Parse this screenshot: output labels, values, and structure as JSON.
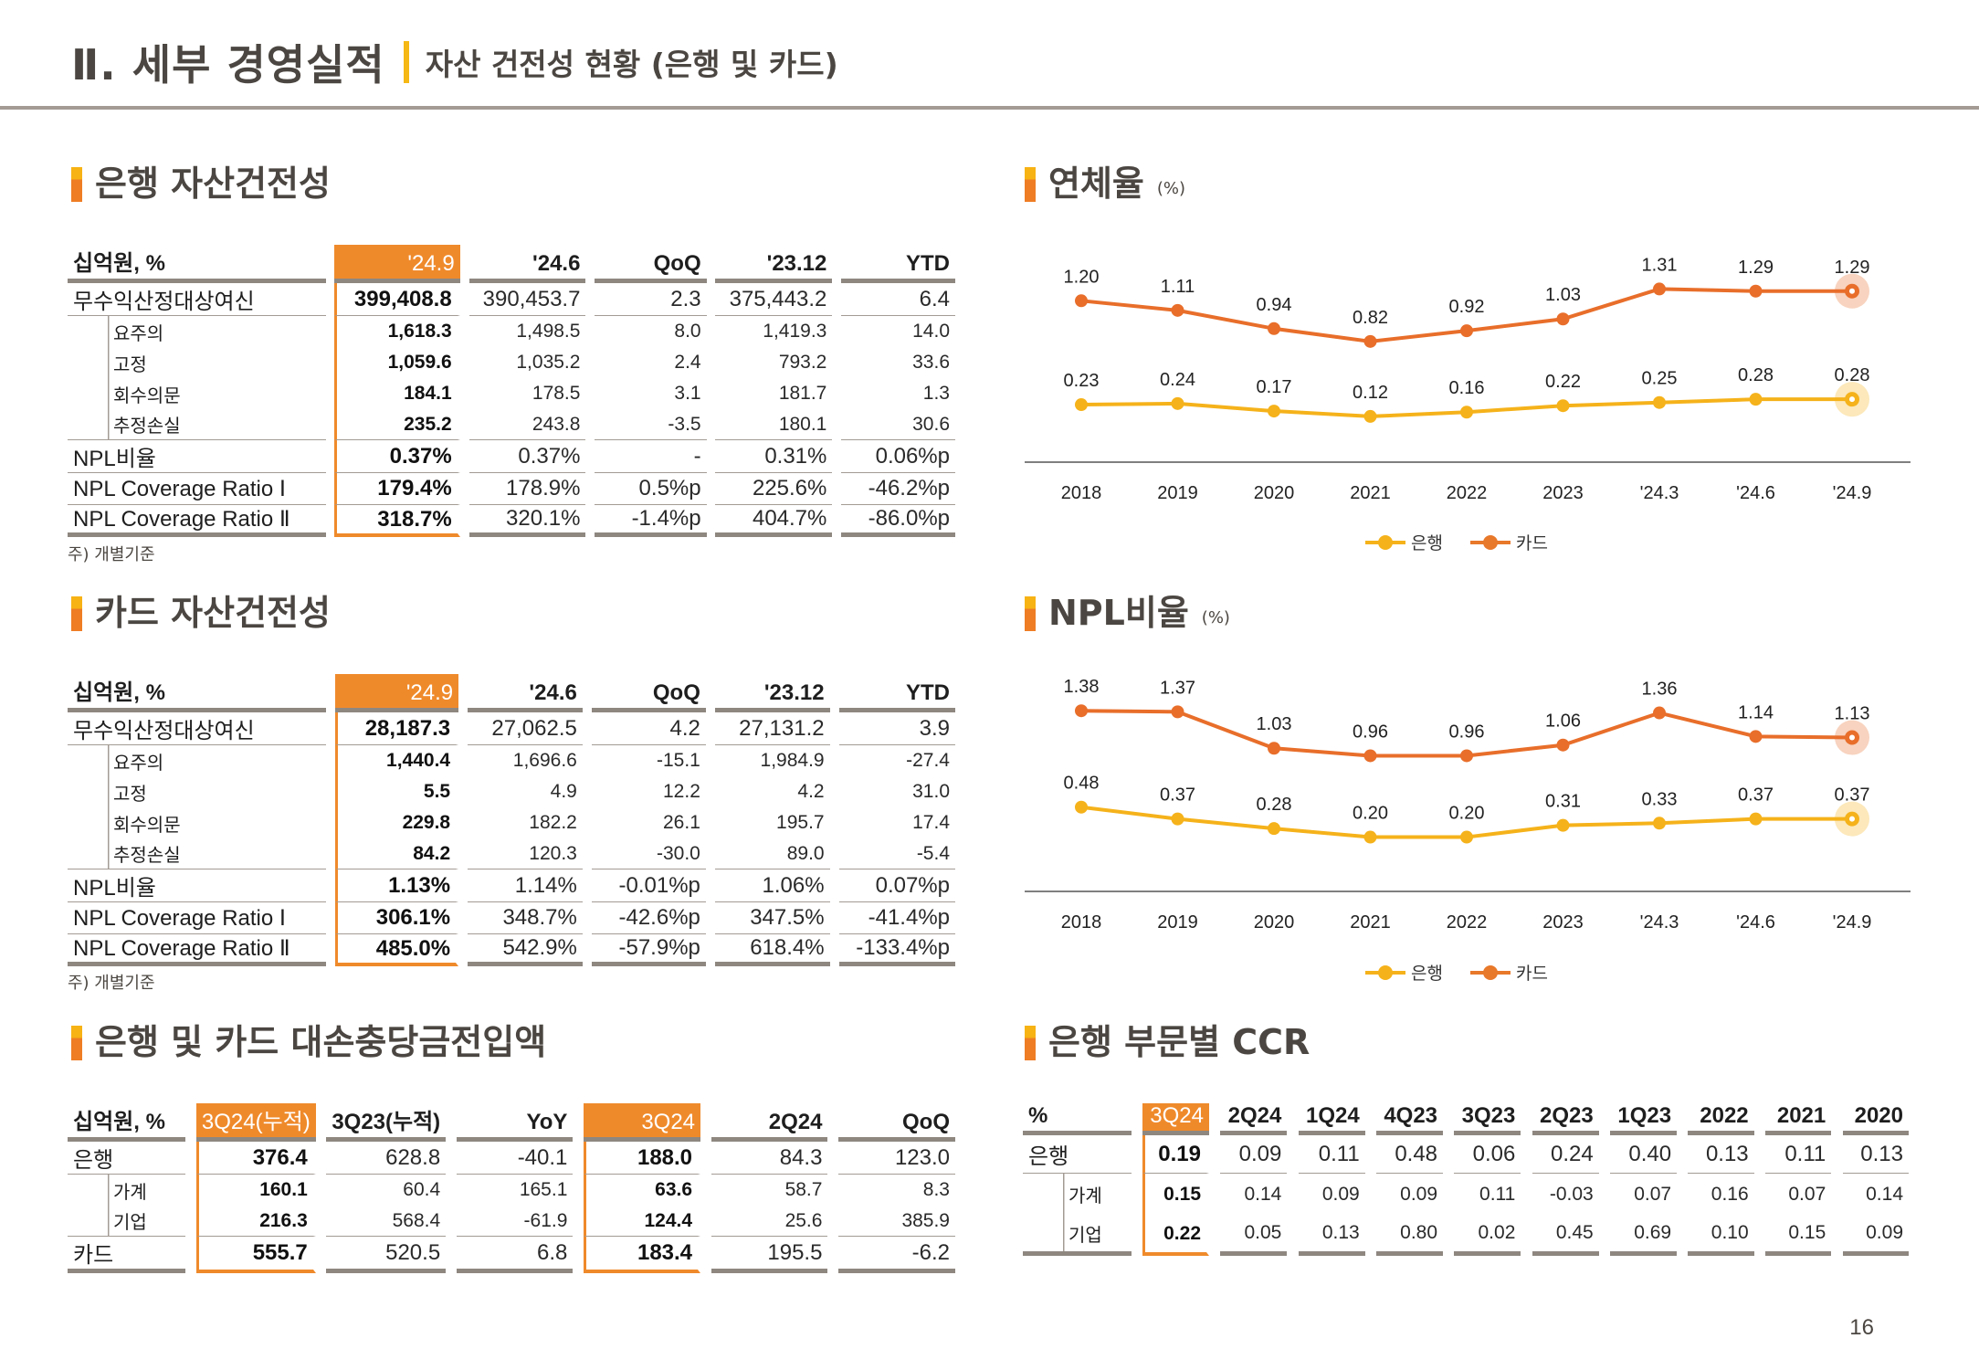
{
  "header": {
    "title": "Ⅱ. 세부 경영실적",
    "subtitle": "자산 건전성 현황 (은행 및 카드)"
  },
  "bank_asset_quality": {
    "title": "은행 자산건전성",
    "columns": [
      "십억원, %",
      "'24.9",
      "'24.6",
      "QoQ",
      "'23.12",
      "YTD"
    ],
    "rows": [
      {
        "label": "무수익산정대상여신",
        "values": [
          "399,408.8",
          "390,453.7",
          "2.3",
          "375,443.2",
          "6.4"
        ],
        "type": "main"
      },
      {
        "label": "요주의",
        "values": [
          "1,618.3",
          "1,498.5",
          "8.0",
          "1,419.3",
          "14.0"
        ],
        "type": "sub"
      },
      {
        "label": "고정",
        "values": [
          "1,059.6",
          "1,035.2",
          "2.4",
          "793.2",
          "33.6"
        ],
        "type": "sub"
      },
      {
        "label": "회수의문",
        "values": [
          "184.1",
          "178.5",
          "3.1",
          "181.7",
          "1.3"
        ],
        "type": "sub"
      },
      {
        "label": "추정손실",
        "values": [
          "235.2",
          "243.8",
          "-3.5",
          "180.1",
          "30.6"
        ],
        "type": "sub"
      },
      {
        "label": "NPL비율",
        "values": [
          "0.37%",
          "0.37%",
          "-",
          "0.31%",
          "0.06%p"
        ],
        "type": "main"
      },
      {
        "label": "NPL Coverage Ratio Ⅰ",
        "values": [
          "179.4%",
          "178.9%",
          "0.5%p",
          "225.6%",
          "-46.2%p"
        ],
        "type": "main"
      },
      {
        "label": "NPL Coverage Ratio Ⅱ",
        "values": [
          "318.7%",
          "320.1%",
          "-1.4%p",
          "404.7%",
          "-86.0%p"
        ],
        "type": "main"
      }
    ],
    "footnote": "주) 개별기준"
  },
  "card_asset_quality": {
    "title": "카드 자산건전성",
    "columns": [
      "십억원, %",
      "'24.9",
      "'24.6",
      "QoQ",
      "'23.12",
      "YTD"
    ],
    "rows": [
      {
        "label": "무수익산정대상여신",
        "values": [
          "28,187.3",
          "27,062.5",
          "4.2",
          "27,131.2",
          "3.9"
        ],
        "type": "main"
      },
      {
        "label": "요주의",
        "values": [
          "1,440.4",
          "1,696.6",
          "-15.1",
          "1,984.9",
          "-27.4"
        ],
        "type": "sub"
      },
      {
        "label": "고정",
        "values": [
          "5.5",
          "4.9",
          "12.2",
          "4.2",
          "31.0"
        ],
        "type": "sub"
      },
      {
        "label": "회수의문",
        "values": [
          "229.8",
          "182.2",
          "26.1",
          "195.7",
          "17.4"
        ],
        "type": "sub"
      },
      {
        "label": "추정손실",
        "values": [
          "84.2",
          "120.3",
          "-30.0",
          "89.0",
          "-5.4"
        ],
        "type": "sub"
      },
      {
        "label": "NPL비율",
        "values": [
          "1.13%",
          "1.14%",
          "-0.01%p",
          "1.06%",
          "0.07%p"
        ],
        "type": "main"
      },
      {
        "label": "NPL Coverage Ratio Ⅰ",
        "values": [
          "306.1%",
          "348.7%",
          "-42.6%p",
          "347.5%",
          "-41.4%p"
        ],
        "type": "main"
      },
      {
        "label": "NPL Coverage Ratio Ⅱ",
        "values": [
          "485.0%",
          "542.9%",
          "-57.9%p",
          "618.4%",
          "-133.4%p"
        ],
        "type": "main"
      }
    ],
    "footnote": "주) 개별기준"
  },
  "provisions": {
    "title": "은행 및 카드 대손충당금전입액",
    "columns": [
      "십억원, %",
      "3Q24(누적)",
      "3Q23(누적)",
      "YoY",
      "3Q24",
      "2Q24",
      "QoQ"
    ],
    "rows": [
      {
        "label": "은행",
        "values": [
          "376.4",
          "628.8",
          "-40.1",
          "188.0",
          "84.3",
          "123.0"
        ],
        "type": "main"
      },
      {
        "label": "가계",
        "values": [
          "160.1",
          "60.4",
          "165.1",
          "63.6",
          "58.7",
          "8.3"
        ],
        "type": "sub"
      },
      {
        "label": "기업",
        "values": [
          "216.3",
          "568.4",
          "-61.9",
          "124.4",
          "25.6",
          "385.9"
        ],
        "type": "sub"
      },
      {
        "label": "카드",
        "values": [
          "555.7",
          "520.5",
          "6.8",
          "183.4",
          "195.5",
          "-6.2"
        ],
        "type": "main"
      }
    ]
  },
  "ccr": {
    "title": "은행 부문별 CCR",
    "columns": [
      "%",
      "3Q24",
      "2Q24",
      "1Q24",
      "4Q23",
      "3Q23",
      "2Q23",
      "1Q23",
      "2022",
      "2021",
      "2020"
    ],
    "rows": [
      {
        "label": "은행",
        "values": [
          "0.19",
          "0.09",
          "0.11",
          "0.48",
          "0.06",
          "0.24",
          "0.40",
          "0.13",
          "0.11",
          "0.13"
        ],
        "type": "main"
      },
      {
        "label": "가계",
        "values": [
          "0.15",
          "0.14",
          "0.09",
          "0.09",
          "0.11",
          "-0.03",
          "0.07",
          "0.16",
          "0.07",
          "0.14"
        ],
        "type": "sub"
      },
      {
        "label": "기업",
        "values": [
          "0.22",
          "0.05",
          "0.13",
          "0.80",
          "0.02",
          "0.45",
          "0.69",
          "0.10",
          "0.15",
          "0.09"
        ],
        "type": "sub"
      }
    ]
  },
  "colors": {
    "bank": "#f5b21a",
    "card": "#e86e2a",
    "highlight": "#ef8a2b",
    "title_text": "#4b4641",
    "rule": "#8e8780"
  },
  "chart_data": [
    {
      "type": "line",
      "title": "연체율",
      "unit": "(%)",
      "categories": [
        "2018",
        "2019",
        "2020",
        "2021",
        "2022",
        "2023",
        "'24.3",
        "'24.6",
        "'24.9"
      ],
      "series": [
        {
          "name": "은행",
          "values": [
            0.23,
            0.24,
            0.17,
            0.12,
            0.16,
            0.22,
            0.25,
            0.28,
            0.28
          ]
        },
        {
          "name": "카드",
          "values": [
            1.2,
            1.11,
            0.94,
            0.82,
            0.92,
            1.03,
            1.31,
            1.29,
            1.29
          ]
        }
      ],
      "legend": "bottom-center",
      "grid": false
    },
    {
      "type": "line",
      "title": "NPL비율",
      "unit": "(%)",
      "categories": [
        "2018",
        "2019",
        "2020",
        "2021",
        "2022",
        "2023",
        "'24.3",
        "'24.6",
        "'24.9"
      ],
      "series": [
        {
          "name": "은행",
          "values": [
            0.48,
            0.37,
            0.28,
            0.2,
            0.2,
            0.31,
            0.33,
            0.37,
            0.37
          ]
        },
        {
          "name": "카드",
          "values": [
            1.38,
            1.37,
            1.03,
            0.96,
            0.96,
            1.06,
            1.36,
            1.14,
            1.13
          ]
        }
      ],
      "legend": "bottom-center",
      "grid": false
    }
  ],
  "page_number": "16"
}
